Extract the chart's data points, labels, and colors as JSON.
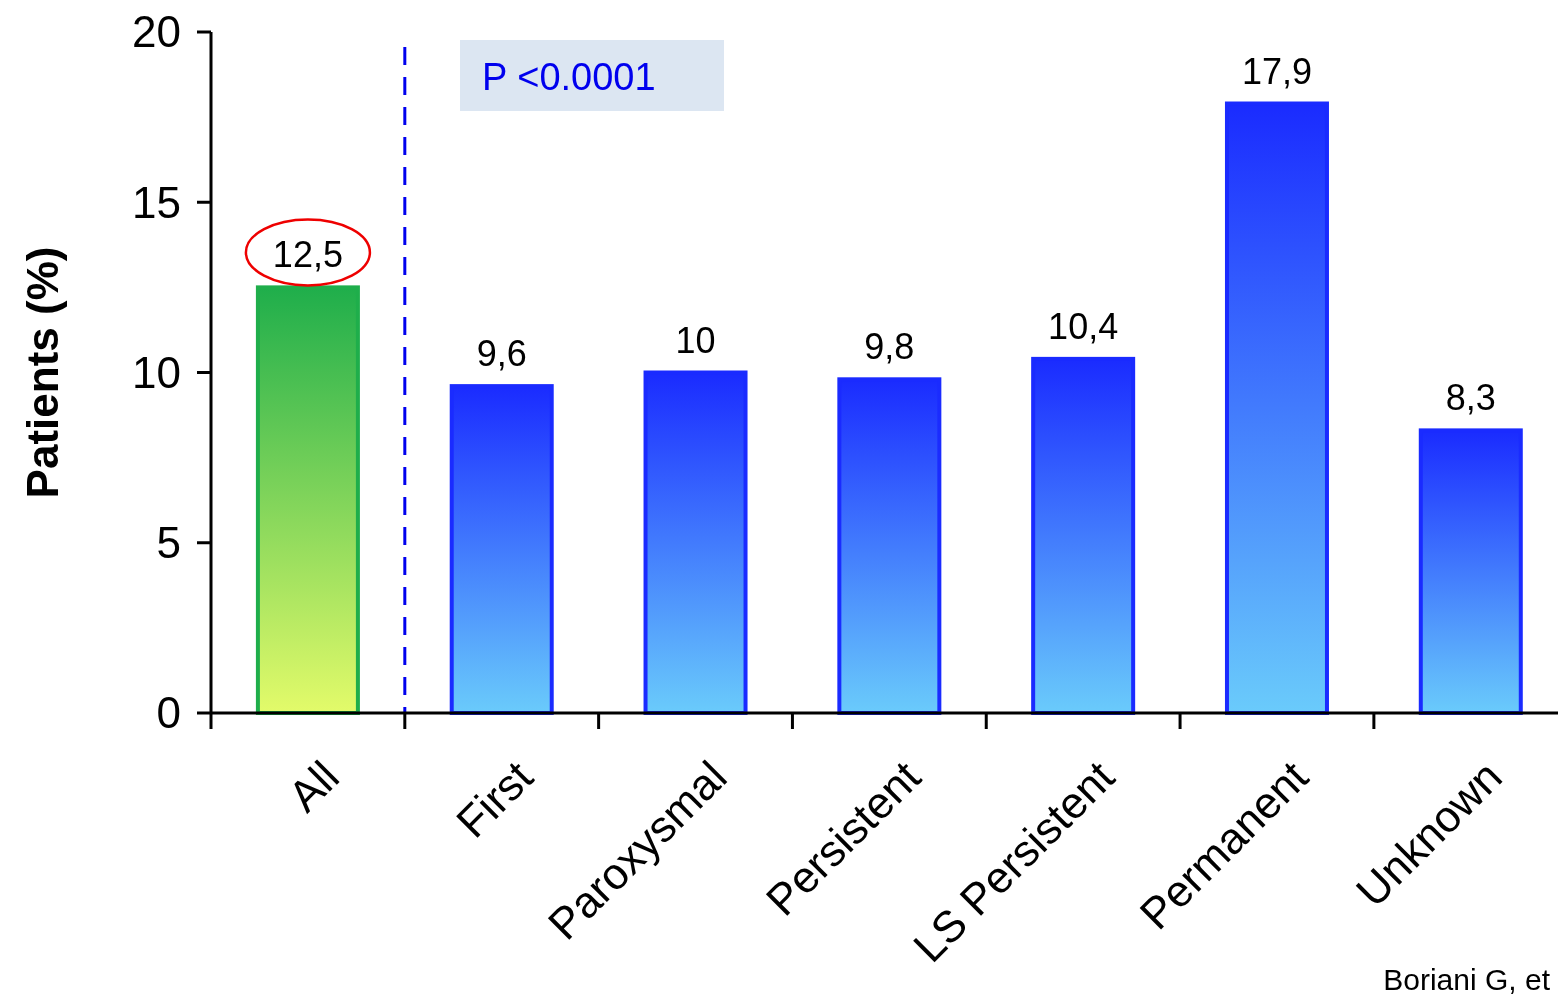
{
  "chart_data": {
    "type": "bar",
    "ylabel": "Patients (%)",
    "categories": [
      "All",
      "First",
      "Paroxysmal",
      "Persistent",
      "LS Persistent",
      "Permanent",
      "Unknown"
    ],
    "values": [
      12.5,
      9.6,
      10,
      9.8,
      10.4,
      17.9,
      8.3
    ],
    "colors": [
      "#1fae4b",
      "#1a2bff",
      "#1a2bff",
      "#1a2bff",
      "#1a2bff",
      "#1a2bff",
      "#1a2bff"
    ],
    "value_labels": [
      "12,5",
      "9,6",
      "10",
      "9,8",
      "10,4",
      "17,9",
      "8,3"
    ],
    "ylim": [
      0,
      20
    ],
    "yticks": [
      0,
      5,
      10,
      15,
      20
    ],
    "grid": false,
    "annotations": [
      "P <0.0001",
      "Boriani G, et"
    ]
  }
}
